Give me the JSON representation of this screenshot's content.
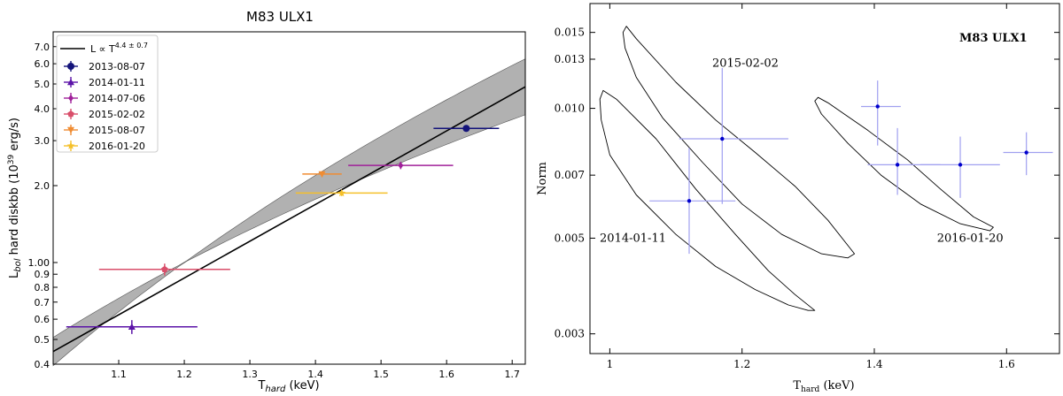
{
  "chart_data": [
    {
      "type": "scatter",
      "title": "M83 ULX1",
      "xlabel_main": "T",
      "xlabel_sub": "hard",
      "xlabel_unit": " (keV)",
      "ylabel_main": "L",
      "ylabel_sub": "bol",
      "ylabel_rest": " hard diskbb (10",
      "ylabel_exp": "39",
      "ylabel_unit": " erg/s)",
      "xscale": "linear",
      "yscale": "log",
      "xlim": [
        1.0,
        1.72
      ],
      "ylim": [
        0.4,
        8.0
      ],
      "xticks": [
        1.1,
        1.2,
        1.3,
        1.4,
        1.5,
        1.6,
        1.7
      ],
      "xtick_labels": [
        "1.1",
        "1.2",
        "1.3",
        "1.4",
        "1.5",
        "1.6",
        "1.7"
      ],
      "yticks": [
        0.4,
        0.5,
        0.6,
        0.7,
        0.8,
        0.9,
        1.0,
        2.0,
        3.0,
        4.0,
        5.0,
        6.0,
        7.0
      ],
      "ytick_labels": [
        "0.4",
        "0.5",
        "0.6",
        "0.7",
        "0.8",
        "0.9",
        "1.00",
        "2.0",
        "3.0",
        "4.0",
        "5.0",
        "6.0",
        "7.0"
      ],
      "fit": {
        "label_prefix": "L ∝ T",
        "label_exp": "4.4 ± 0.7",
        "pivot_x": 1.2,
        "pivot_y": 1.0,
        "slope": 4.4,
        "slope_err": 0.7
      },
      "legend_position": "upper-left",
      "series": [
        {
          "name": "2013-08-07",
          "x": 1.63,
          "xerr": 0.05,
          "y": 3.35,
          "yerr": 0.1,
          "color": "#14147a",
          "marker": "circle"
        },
        {
          "name": "2014-01-11",
          "x": 1.12,
          "xerr": 0.1,
          "y": 0.56,
          "yerr": 0.035,
          "color": "#5c14a8",
          "marker": "triangle"
        },
        {
          "name": "2014-07-06",
          "x": 1.53,
          "xerr": 0.08,
          "y": 2.4,
          "yerr": 0.08,
          "color": "#a0209a",
          "marker": "diamond"
        },
        {
          "name": "2015-02-02",
          "x": 1.17,
          "xerr": 0.1,
          "y": 0.94,
          "yerr": 0.05,
          "color": "#d94f6b",
          "marker": "pentagon"
        },
        {
          "name": "2015-08-07",
          "x": 1.41,
          "xerr": 0.03,
          "y": 2.22,
          "yerr": 0.06,
          "color": "#f08c32",
          "marker": "triangle-down"
        },
        {
          "name": "2016-01-20",
          "x": 1.44,
          "xerr": 0.07,
          "y": 1.87,
          "yerr": 0.05,
          "color": "#f5c02a",
          "marker": "star"
        }
      ]
    },
    {
      "type": "scatter",
      "title": "M83 ULX1",
      "xlabel_main": "T",
      "xlabel_sub": "hard",
      "xlabel_unit": " (keV)",
      "ylabel": "Norm",
      "xscale": "linear",
      "yscale": "log",
      "xlim": [
        0.97,
        1.68
      ],
      "ylim": [
        0.0027,
        0.0175
      ],
      "xticks": [
        1.0,
        1.2,
        1.4,
        1.6
      ],
      "xtick_labels": [
        "1",
        "1.2",
        "1.4",
        "1.6"
      ],
      "yticks": [
        0.003,
        0.005,
        0.007,
        0.01,
        0.013,
        0.015
      ],
      "ytick_labels": [
        "0.003",
        "0.005",
        "0.007",
        "0.010",
        "0.013",
        "0.015"
      ],
      "points": [
        {
          "x": 1.12,
          "xerr_lo": 0.06,
          "xerr_hi": 0.07,
          "y": 0.0061,
          "yerr_lo": 0.0015,
          "yerr_hi": 0.002
        },
        {
          "x": 1.17,
          "xerr_lo": 0.065,
          "xerr_hi": 0.1,
          "y": 0.0085,
          "yerr_lo": 0.0025,
          "yerr_hi": 0.0039
        },
        {
          "x": 1.405,
          "xerr_lo": 0.025,
          "xerr_hi": 0.035,
          "y": 0.0101,
          "yerr_lo": 0.0019,
          "yerr_hi": 0.0015
        },
        {
          "x": 1.435,
          "xerr_lo": 0.045,
          "xerr_hi": 0.065,
          "y": 0.0074,
          "yerr_lo": 0.0011,
          "yerr_hi": 0.0016
        },
        {
          "x": 1.53,
          "xerr_lo": 0.06,
          "xerr_hi": 0.06,
          "y": 0.0074,
          "yerr_lo": 0.0012,
          "yerr_hi": 0.0012
        },
        {
          "x": 1.63,
          "xerr_lo": 0.035,
          "xerr_hi": 0.04,
          "y": 0.0079,
          "yerr_lo": 0.0009,
          "yerr_hi": 0.0009
        }
      ],
      "contours": [
        {
          "name": "2014-01-11",
          "vertices": [
            [
              0.99,
              0.011
            ],
            [
              1.01,
              0.0105
            ],
            [
              1.07,
              0.0085
            ],
            [
              1.13,
              0.0065
            ],
            [
              1.19,
              0.0051
            ],
            [
              1.24,
              0.0042
            ],
            [
              1.28,
              0.0037
            ],
            [
              1.31,
              0.0034
            ],
            [
              1.3,
              0.0034
            ],
            [
              1.27,
              0.0035
            ],
            [
              1.22,
              0.0038
            ],
            [
              1.16,
              0.0043
            ],
            [
              1.1,
              0.0051
            ],
            [
              1.04,
              0.0063
            ],
            [
              1.0,
              0.0078
            ],
            [
              0.987,
              0.0094
            ],
            [
              0.985,
              0.0105
            ]
          ]
        },
        {
          "name": "2015-02-02",
          "vertices": [
            [
              1.025,
              0.0155
            ],
            [
              1.04,
              0.0145
            ],
            [
              1.1,
              0.0115
            ],
            [
              1.16,
              0.0094
            ],
            [
              1.22,
              0.0079
            ],
            [
              1.28,
              0.0066
            ],
            [
              1.33,
              0.0055
            ],
            [
              1.37,
              0.0046
            ],
            [
              1.36,
              0.0045
            ],
            [
              1.32,
              0.0046
            ],
            [
              1.26,
              0.0051
            ],
            [
              1.2,
              0.006
            ],
            [
              1.14,
              0.0075
            ],
            [
              1.08,
              0.0095
            ],
            [
              1.04,
              0.0118
            ],
            [
              1.023,
              0.0138
            ],
            [
              1.02,
              0.015
            ]
          ]
        },
        {
          "name": "2016-01-20",
          "vertices": [
            [
              1.315,
              0.0106
            ],
            [
              1.33,
              0.0103
            ],
            [
              1.39,
              0.0089
            ],
            [
              1.45,
              0.0076
            ],
            [
              1.5,
              0.0065
            ],
            [
              1.55,
              0.0056
            ],
            [
              1.58,
              0.0053
            ],
            [
              1.575,
              0.0052
            ],
            [
              1.53,
              0.0054
            ],
            [
              1.47,
              0.006
            ],
            [
              1.41,
              0.007
            ],
            [
              1.36,
              0.0083
            ],
            [
              1.32,
              0.0097
            ],
            [
              1.31,
              0.0104
            ]
          ]
        }
      ],
      "annotations": [
        {
          "text": "2015-02-02",
          "x": 1.205,
          "y": 0.0125
        },
        {
          "text": "2014-01-11",
          "x": 1.035,
          "y": 0.0049
        },
        {
          "text": "2016-01-20",
          "x": 1.545,
          "y": 0.0049
        },
        {
          "text": "M83 ULX1",
          "x": 1.58,
          "y": 0.0143
        }
      ],
      "point_color": "#0000cc",
      "errorbar_color": "#a0a0f0"
    }
  ]
}
